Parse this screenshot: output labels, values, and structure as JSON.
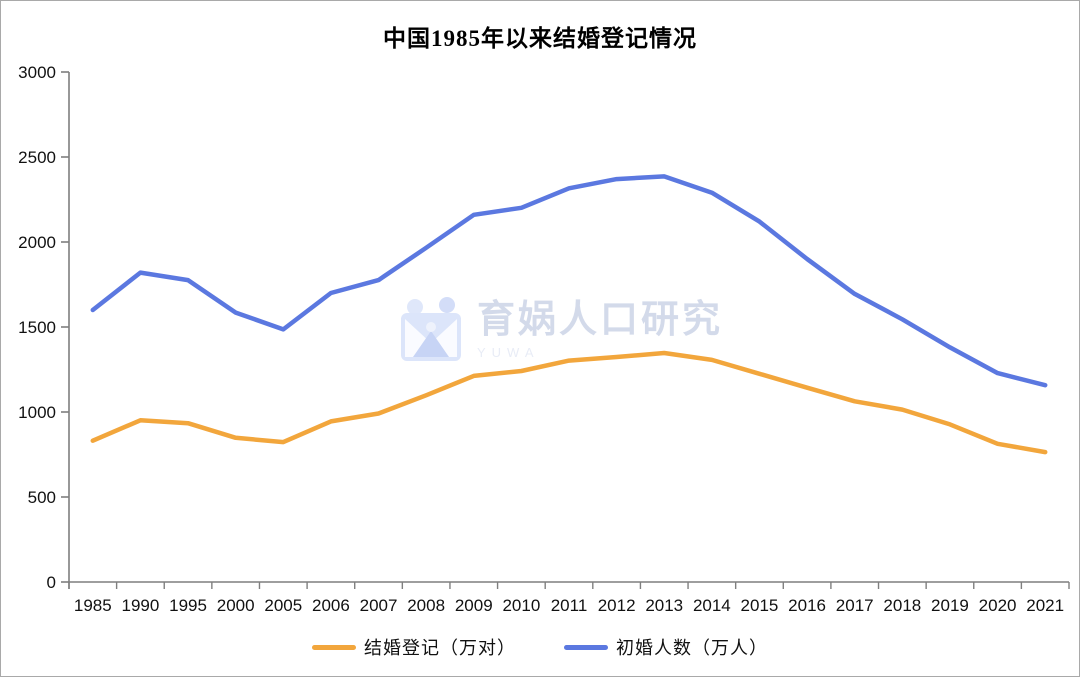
{
  "title": "中国1985年以来结婚登记情况",
  "watermark": {
    "name": "育娲人口研究",
    "subtext": "YUWA",
    "icon_color": "#dfe7fa",
    "icon_accent": "#c7d4f5"
  },
  "chart_data": {
    "type": "line",
    "title": "中国1985年以来结婚登记情况",
    "categories": [
      "1985",
      "1990",
      "1995",
      "2000",
      "2005",
      "2006",
      "2007",
      "2008",
      "2009",
      "2010",
      "2011",
      "2012",
      "2013",
      "2014",
      "2015",
      "2016",
      "2017",
      "2018",
      "2019",
      "2020",
      "2021"
    ],
    "series": [
      {
        "name": "结婚登记（万对）",
        "color": "#F2A63C",
        "values": [
          831.1,
          951.1,
          934.1,
          848.5,
          823.1,
          945.0,
          991.4,
          1098.3,
          1212.1,
          1241.0,
          1302.4,
          1323.6,
          1346.9,
          1306.7,
          1224.7,
          1142.8,
          1063.1,
          1013.9,
          927.3,
          813.1,
          764.3
        ]
      },
      {
        "name": "初婚人数（万人）",
        "color": "#5B78E0",
        "values": [
          1600,
          1820,
          1776,
          1585,
          1486,
          1700,
          1776,
          1966,
          2160,
          2201,
          2316,
          2370,
          2386,
          2290,
          2120,
          1900,
          1695,
          1545,
          1380,
          1228.6,
          1157.8
        ]
      }
    ],
    "ylim": [
      0,
      3000
    ],
    "ytick_step": 500,
    "grid": false,
    "legend_position": "bottom",
    "axis_color": "#7f7f7f"
  }
}
